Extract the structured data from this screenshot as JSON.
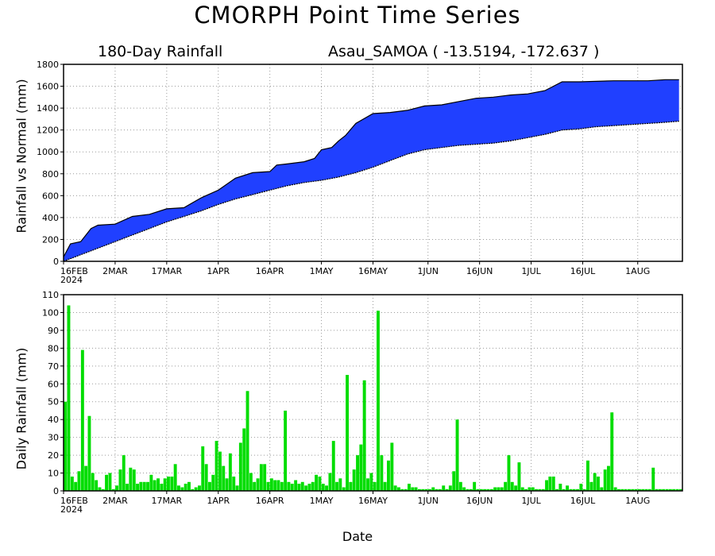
{
  "title": "CMORPH Point Time Series",
  "subtitle_left": "180-Day Rainfall",
  "subtitle_right": "Asau_SAMOA ( -13.5194, -172.637 )",
  "xlabel": "Date",
  "colors": {
    "cumulative_fill": "#2040ff",
    "daily_bars": "#00dd00",
    "grid": "#9a9a9a",
    "frame": "#000000"
  },
  "x_ticks": [
    {
      "label": "16FEB",
      "sub": "2024",
      "day": 0
    },
    {
      "label": "2MAR",
      "day": 15
    },
    {
      "label": "17MAR",
      "day": 30
    },
    {
      "label": "1APR",
      "day": 45
    },
    {
      "label": "16APR",
      "day": 60
    },
    {
      "label": "1MAY",
      "day": 75
    },
    {
      "label": "16MAY",
      "day": 90
    },
    {
      "label": "1JUN",
      "day": 106
    },
    {
      "label": "16JUN",
      "day": 121
    },
    {
      "label": "1JUL",
      "day": 136
    },
    {
      "label": "16JUL",
      "day": 151
    },
    {
      "label": "1AUG",
      "day": 167
    }
  ],
  "chart_data": [
    {
      "type": "area",
      "ylabel": "Rainfall vs Normal (mm)",
      "ylim": [
        0,
        1800
      ],
      "yticks": [
        0,
        200,
        400,
        600,
        800,
        1000,
        1200,
        1400,
        1600,
        1800
      ],
      "xlim": [
        0,
        180
      ],
      "grid": true,
      "series": [
        {
          "x": [
            0,
            2,
            5,
            8,
            10,
            15,
            20,
            25,
            30,
            35,
            40,
            45,
            50,
            55,
            60,
            62,
            65,
            70,
            73,
            75,
            78,
            80,
            82,
            85,
            90,
            95,
            100,
            105,
            110,
            115,
            120,
            125,
            130,
            135,
            140,
            145,
            150,
            155,
            160,
            165,
            170,
            175,
            179
          ],
          "values": [
            40,
            160,
            180,
            300,
            330,
            340,
            410,
            430,
            480,
            490,
            580,
            650,
            760,
            810,
            820,
            880,
            890,
            910,
            940,
            1020,
            1040,
            1100,
            1150,
            1260,
            1350,
            1360,
            1380,
            1420,
            1430,
            1460,
            1490,
            1500,
            1520,
            1530,
            1560,
            1640,
            1640,
            1645,
            1650,
            1650,
            1650,
            1660,
            1660
          ]
        },
        {
          "x": [
            0,
            5,
            10,
            15,
            20,
            25,
            30,
            35,
            40,
            45,
            50,
            55,
            60,
            65,
            70,
            75,
            80,
            85,
            90,
            95,
            100,
            105,
            110,
            115,
            120,
            125,
            130,
            135,
            140,
            145,
            150,
            155,
            160,
            165,
            170,
            175,
            179
          ],
          "values": [
            0,
            60,
            120,
            180,
            240,
            300,
            360,
            410,
            460,
            520,
            570,
            610,
            650,
            690,
            720,
            740,
            770,
            810,
            860,
            920,
            980,
            1020,
            1040,
            1060,
            1070,
            1080,
            1100,
            1130,
            1160,
            1200,
            1210,
            1230,
            1240,
            1250,
            1260,
            1270,
            1280
          ]
        }
      ]
    },
    {
      "type": "bar",
      "ylabel": "Daily Rainfall (mm)",
      "ylim": [
        0,
        110
      ],
      "yticks": [
        0,
        10,
        20,
        30,
        40,
        50,
        60,
        70,
        80,
        90,
        100,
        110
      ],
      "xlim": [
        0,
        180
      ],
      "grid": true,
      "series": [
        {
          "values": [
            50,
            104,
            8,
            5,
            11,
            79,
            14,
            42,
            10,
            6,
            2,
            1,
            9,
            10,
            1,
            3,
            12,
            20,
            4,
            13,
            12,
            4,
            5,
            5,
            5,
            9,
            6,
            7,
            4,
            7,
            8,
            8,
            15,
            3,
            2,
            4,
            5,
            1,
            2,
            3,
            25,
            15,
            5,
            9,
            28,
            22,
            14,
            7,
            21,
            8,
            3,
            27,
            35,
            56,
            10,
            5,
            7,
            15,
            15,
            5,
            7,
            6,
            6,
            5,
            45,
            5,
            4,
            6,
            4,
            5,
            3,
            4,
            5,
            9,
            8,
            4,
            3,
            10,
            28,
            5,
            7,
            2,
            65,
            5,
            12,
            20,
            26,
            62,
            7,
            10,
            5,
            101,
            20,
            5,
            17,
            27,
            3,
            2,
            1,
            1,
            4,
            2,
            2,
            1,
            1,
            1,
            1,
            2,
            1,
            1,
            3,
            1,
            3,
            11,
            40,
            5,
            2,
            1,
            1,
            5,
            1,
            1,
            1,
            1,
            1,
            2,
            2,
            2,
            5,
            20,
            5,
            3,
            16,
            2,
            1,
            2,
            2,
            1,
            1,
            1,
            6,
            8,
            8,
            1,
            4,
            1,
            3,
            1,
            1,
            1,
            4,
            1,
            17,
            5,
            10,
            8,
            2,
            12,
            14,
            44,
            2,
            1,
            1,
            1,
            1,
            1,
            1,
            1,
            1,
            1,
            1,
            13,
            1,
            1,
            1,
            1,
            1,
            1,
            1,
            1
          ]
        }
      ]
    }
  ]
}
